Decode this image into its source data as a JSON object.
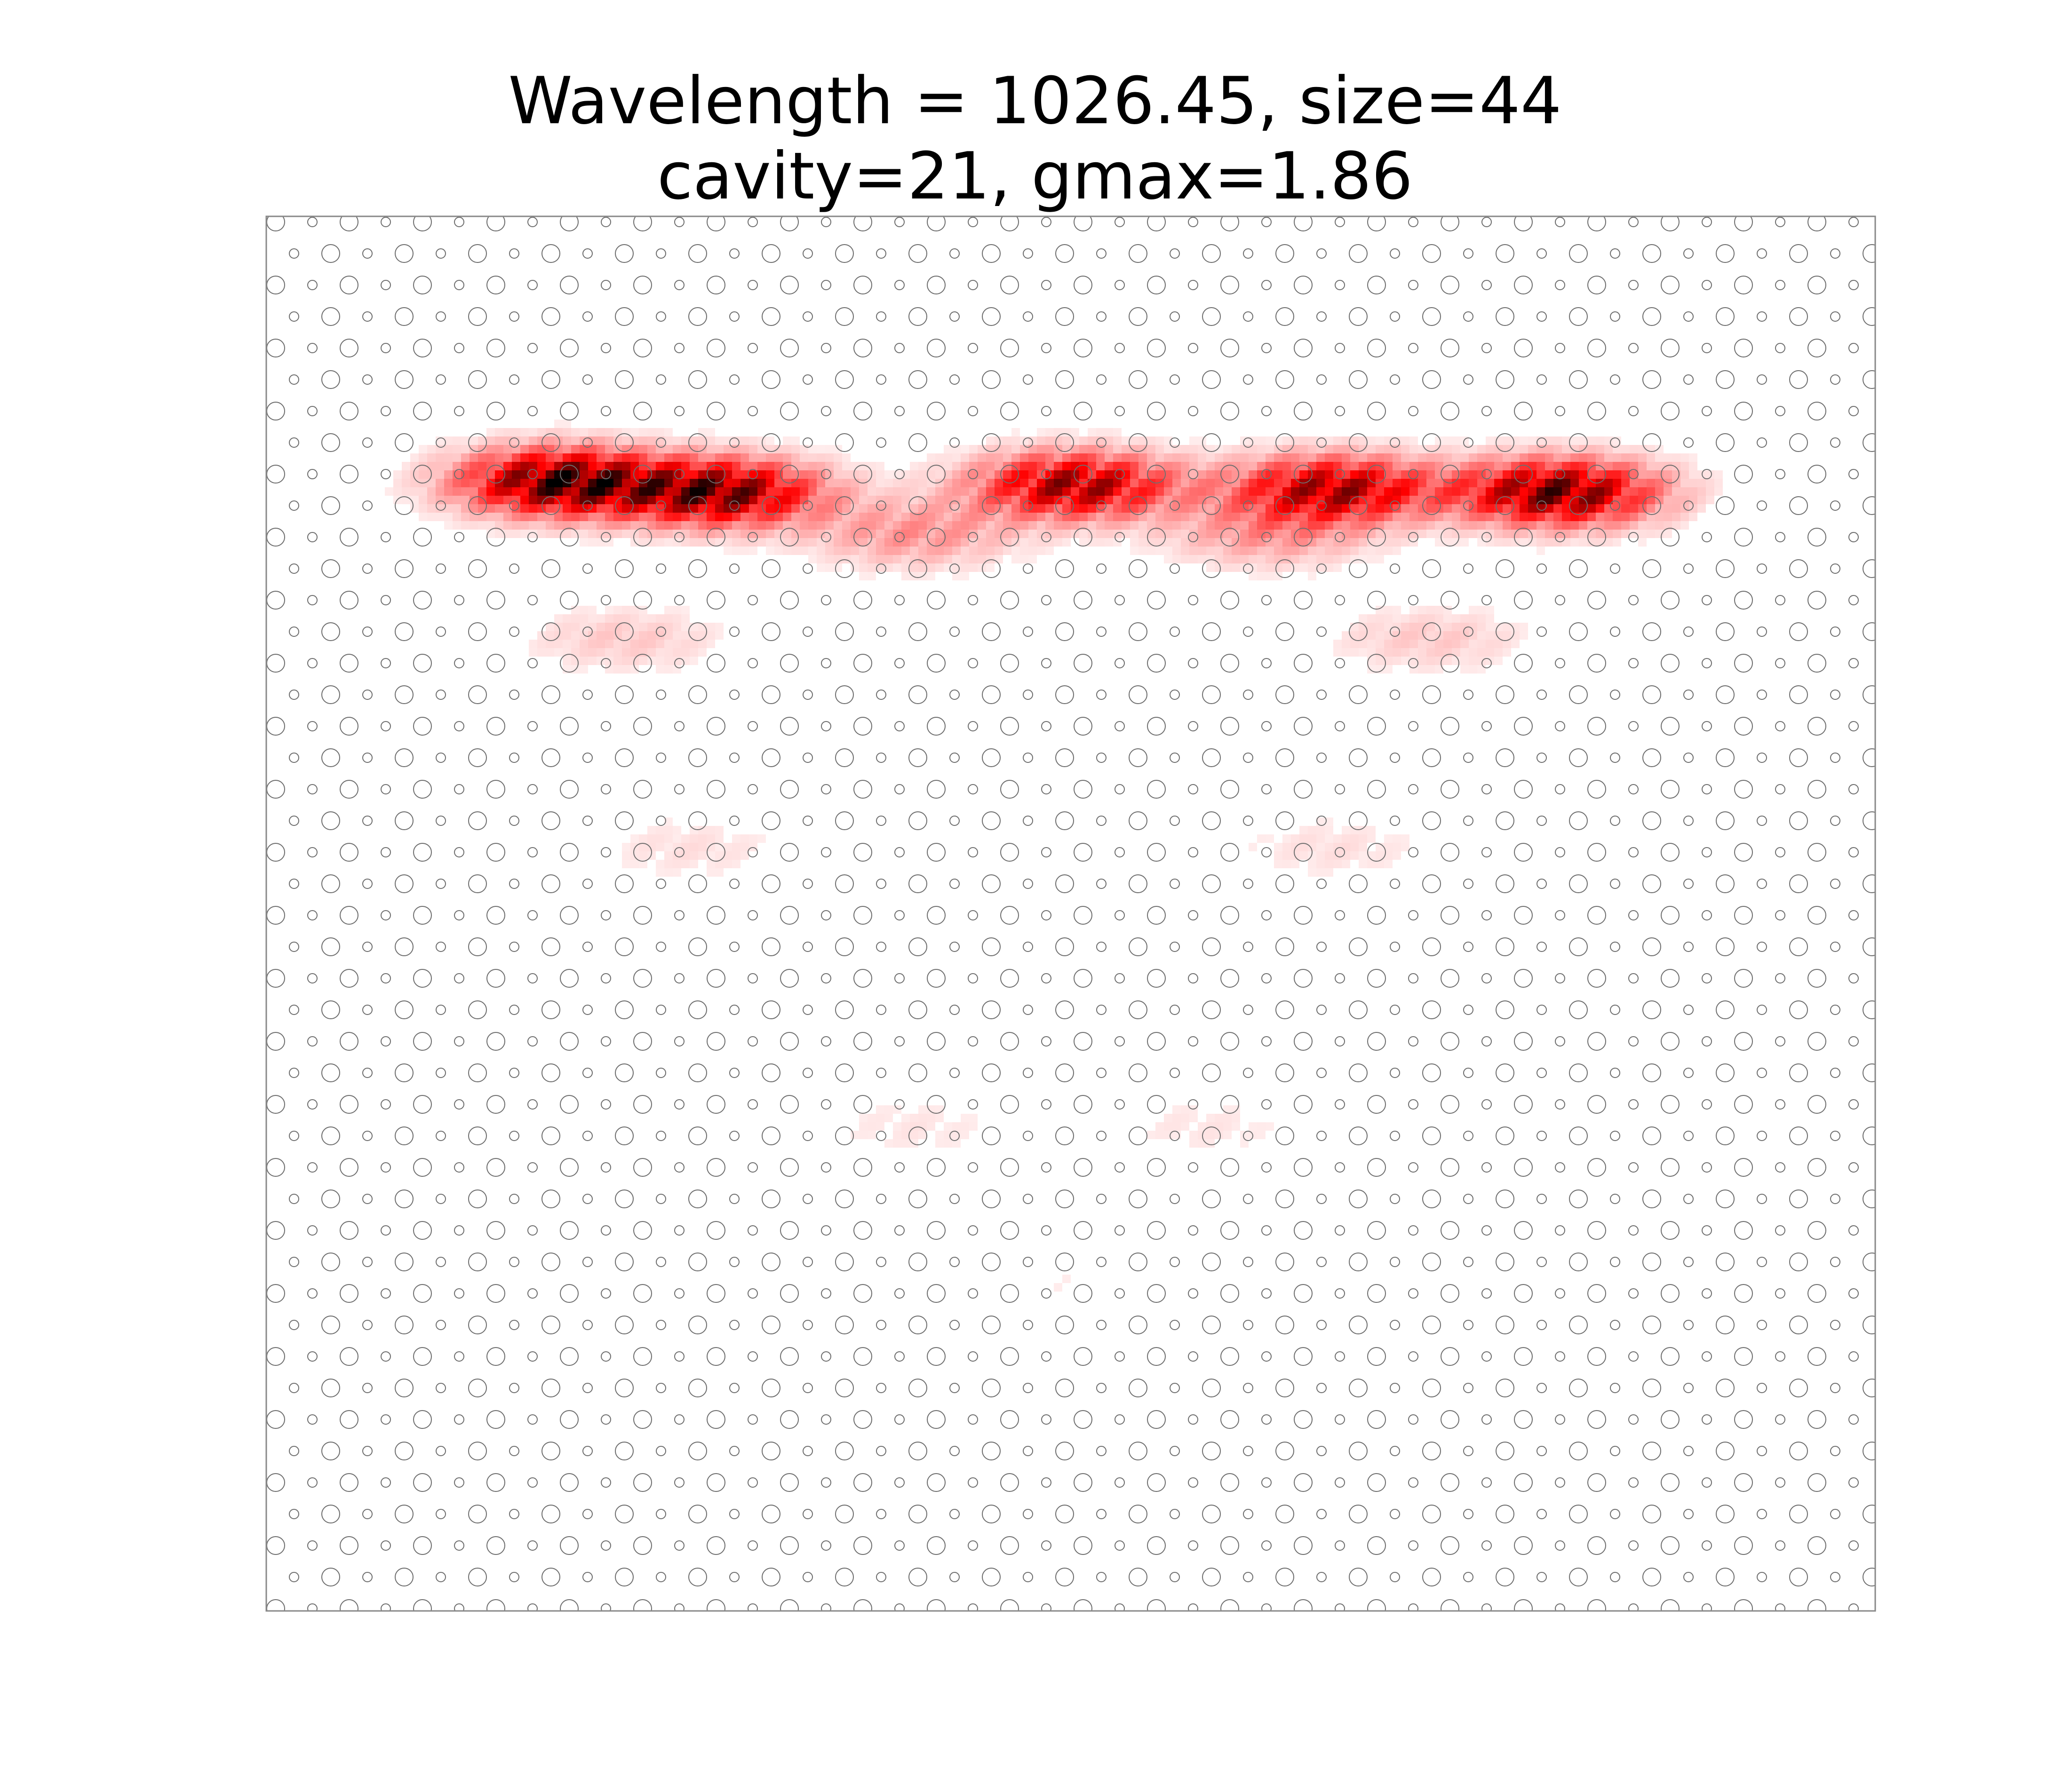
{
  "chart_data": {
    "type": "heatmap",
    "title": "Wavelength = 1026.45, size=44",
    "subtitle": "cavity=21, gmax=1.86",
    "xlabel": "",
    "ylabel": "",
    "axes_visible": false,
    "grid": false,
    "legend": "none",
    "colormap": "white-to-red-to-black",
    "colors": {
      "frame": "#888888",
      "holes": "#6e6e6e",
      "field_mid": "#ff0000",
      "field_max": "#000000"
    },
    "field_hotspots": [
      {
        "x": 0.18,
        "y": -0.75,
        "gain": 1.86
      },
      {
        "x": 0.28,
        "y": -0.78,
        "gain": 1.7
      },
      {
        "x": 0.5,
        "y": -0.76,
        "gain": 1.55
      },
      {
        "x": 0.66,
        "y": -0.77,
        "gain": 1.5
      },
      {
        "x": 0.8,
        "y": -0.78,
        "gain": 1.75
      },
      {
        "x": 0.4,
        "y": -0.9,
        "gain": 0.5
      },
      {
        "x": 0.62,
        "y": -0.9,
        "gain": 0.45
      },
      {
        "x": 0.22,
        "y": -1.2,
        "gain": 0.25
      },
      {
        "x": 0.72,
        "y": -1.2,
        "gain": 0.25
      },
      {
        "x": 0.26,
        "y": -1.8,
        "gain": 0.15
      },
      {
        "x": 0.66,
        "y": -1.8,
        "gain": 0.15
      },
      {
        "x": 0.4,
        "y": -2.6,
        "gain": 0.12
      },
      {
        "x": 0.58,
        "y": -2.6,
        "gain": 0.12
      },
      {
        "x": 0.5,
        "y": -3.05,
        "gain": 0.08
      }
    ]
  }
}
